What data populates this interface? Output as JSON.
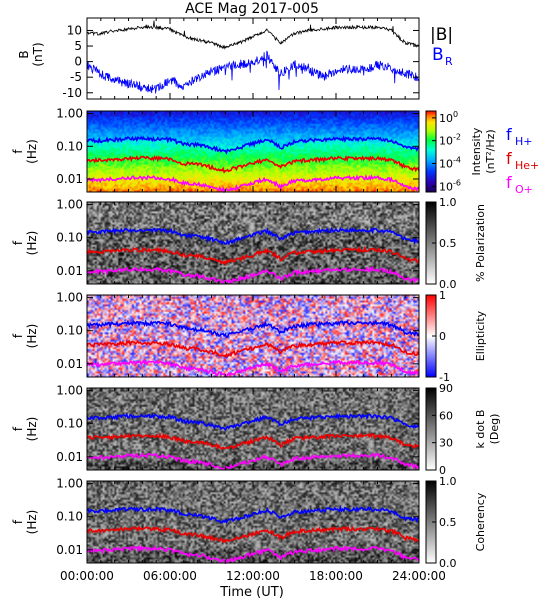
{
  "chart_data": {
    "type": "line",
    "title": "ACE Mag 2017-005",
    "xlabel": "Time (UT)",
    "x_ticks": [
      "00:00:00",
      "06:00:00",
      "12:00:00",
      "18:00:00",
      "24:00:00"
    ],
    "x_range_hours": [
      0,
      24
    ],
    "panels": [
      {
        "kind": "line",
        "ylabel": "B",
        "yunit": "(nT)",
        "ylim": [
          -12,
          14
        ],
        "yticks": [
          "10",
          "5",
          "0",
          "-5",
          "-10"
        ],
        "yticks_values": [
          10,
          5,
          0,
          -5,
          -10
        ],
        "legend": [
          "|B|",
          "B",
          "R"
        ],
        "series": [
          {
            "name": "|B|",
            "color": "#000000",
            "x": [
              0,
              1,
              2,
              3,
              4,
              5,
              6,
              7,
              8,
              9,
              10,
              11,
              12,
              13,
              14,
              15,
              16,
              17,
              18,
              19,
              20,
              21,
              22,
              23,
              24
            ],
            "y": [
              9,
              9,
              10,
              10.5,
              11,
              11,
              10.5,
              8,
              7,
              6,
              4.5,
              6,
              8,
              10,
              6,
              9,
              10,
              10.5,
              11,
              11,
              11,
              11,
              10,
              6,
              5
            ]
          },
          {
            "name": "B_R",
            "color": "#0000ff",
            "x": [
              0,
              1,
              2,
              3,
              4,
              5,
              6,
              7,
              8,
              9,
              10,
              11,
              12,
              13,
              14,
              15,
              16,
              17,
              18,
              19,
              20,
              21,
              22,
              23,
              24
            ],
            "y": [
              -1,
              -4,
              -6,
              -7,
              -8,
              -9,
              -6,
              -8,
              -5,
              -3,
              -2,
              -1,
              0,
              2,
              -4,
              -1,
              -2,
              -5,
              -3,
              -2,
              -3,
              -1,
              -2,
              -4,
              -5
            ]
          }
        ]
      },
      {
        "kind": "spectrogram",
        "ylabel": "f",
        "yunit": "(Hz)",
        "yticks": [
          "1.00",
          "0.10",
          "0.01"
        ],
        "colorbar_label": "Intensity",
        "colorbar_unit": "(nT²/Hz)",
        "colorbar_ticks": [
          "10",
          "10",
          "10",
          "10"
        ],
        "colorbar_ticks_exp": [
          "0",
          "-2",
          "-4",
          "-6"
        ],
        "colorbar_range_log10": [
          -6.5,
          0.6
        ],
        "legend": [
          {
            "base": "f",
            "sub": "H+",
            "color": "#0000ff"
          },
          {
            "base": "f",
            "sub": "He+",
            "color": "#dd0000"
          },
          {
            "base": "f",
            "sub": "O+",
            "color": "#ff00ff"
          }
        ]
      },
      {
        "kind": "spectrogram",
        "ylabel": "f",
        "yunit": "(Hz)",
        "yticks": [
          "1.00",
          "0.10",
          "0.01"
        ],
        "colorbar_label": "% Polarization",
        "colorbar_ticks": [
          "1.0",
          "0.5",
          "0.0"
        ],
        "colorbar_range": [
          0,
          1
        ]
      },
      {
        "kind": "spectrogram",
        "ylabel": "f",
        "yunit": "(Hz)",
        "yticks": [
          "1.00",
          "0.10",
          "0.01"
        ],
        "colorbar_label": "Ellipticity",
        "colorbar_ticks": [
          "1",
          "0",
          "-1"
        ],
        "colorbar_range": [
          -1,
          1
        ]
      },
      {
        "kind": "spectrogram",
        "ylabel": "f",
        "yunit": "(Hz)",
        "yticks": [
          "1.00",
          "0.10",
          "0.01"
        ],
        "colorbar_label": "k dot B",
        "colorbar_unit": "(Deg)",
        "colorbar_ticks": [
          "90",
          "60",
          "30",
          "0"
        ],
        "colorbar_range": [
          0,
          90
        ]
      },
      {
        "kind": "spectrogram",
        "ylabel": "f",
        "yunit": "(Hz)",
        "yticks": [
          "1.00",
          "0.10",
          "0.01"
        ],
        "colorbar_label": "Coherency",
        "colorbar_ticks": [
          "1.0",
          "0.5",
          "0.0"
        ],
        "colorbar_range": [
          0,
          1
        ]
      }
    ],
    "gyrofrequency_lines": {
      "x_hours": [
        0,
        1,
        2,
        3,
        4,
        5,
        6,
        7,
        8,
        9,
        10,
        11,
        12,
        13,
        14,
        15,
        16,
        17,
        18,
        19,
        20,
        21,
        22,
        23,
        24
      ],
      "H+": [
        0.15,
        0.15,
        0.16,
        0.17,
        0.17,
        0.17,
        0.16,
        0.12,
        0.11,
        0.09,
        0.07,
        0.09,
        0.12,
        0.16,
        0.09,
        0.14,
        0.15,
        0.16,
        0.17,
        0.17,
        0.17,
        0.17,
        0.15,
        0.09,
        0.08
      ],
      "He+": [
        0.038,
        0.038,
        0.04,
        0.043,
        0.043,
        0.043,
        0.04,
        0.03,
        0.028,
        0.023,
        0.018,
        0.023,
        0.03,
        0.04,
        0.023,
        0.035,
        0.038,
        0.04,
        0.043,
        0.043,
        0.043,
        0.043,
        0.038,
        0.023,
        0.02
      ],
      "O+": [
        0.0095,
        0.0095,
        0.01,
        0.011,
        0.011,
        0.011,
        0.01,
        0.0075,
        0.007,
        0.0057,
        0.0045,
        0.0057,
        0.0075,
        0.01,
        0.0057,
        0.0088,
        0.0095,
        0.01,
        0.011,
        0.011,
        0.011,
        0.011,
        0.0095,
        0.0057,
        0.005
      ]
    }
  }
}
